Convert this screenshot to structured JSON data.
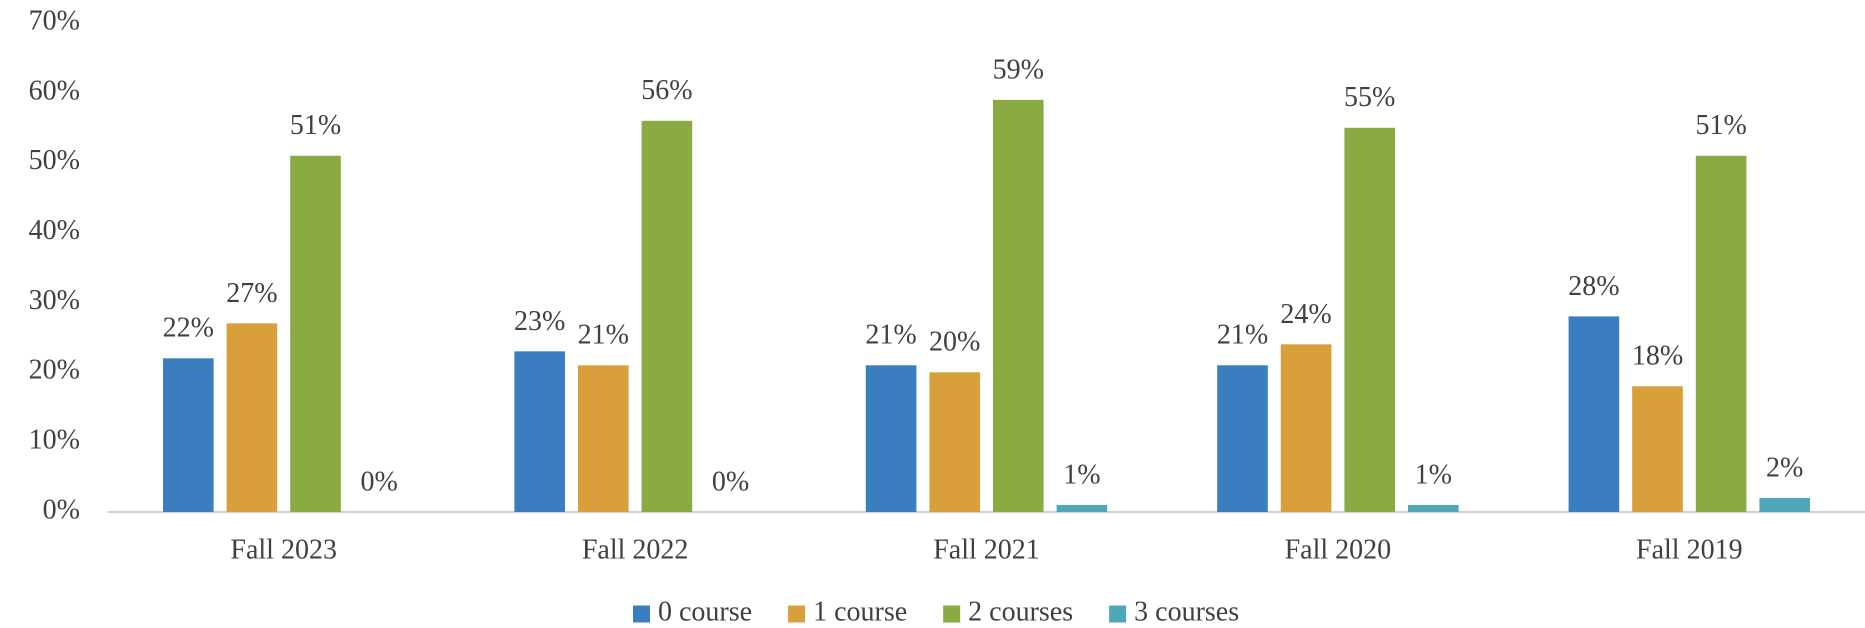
{
  "chart_data": {
    "type": "bar",
    "categories": [
      "Fall 2023",
      "Fall 2022",
      "Fall 2021",
      "Fall 2020",
      "Fall 2019"
    ],
    "series": [
      {
        "name": "0 course",
        "color": "#3a7ebf",
        "values": [
          22,
          23,
          21,
          21,
          28
        ],
        "value_labels": [
          "22%",
          "23%",
          "21%",
          "21%",
          "28%"
        ]
      },
      {
        "name": "1 course",
        "color": "#d89f3a",
        "values": [
          27,
          21,
          20,
          24,
          18
        ],
        "value_labels": [
          "27%",
          "21%",
          "20%",
          "24%",
          "18%"
        ]
      },
      {
        "name": "2 courses",
        "color": "#8aab42",
        "values": [
          51,
          56,
          59,
          55,
          51
        ],
        "value_labels": [
          "51%",
          "56%",
          "59%",
          "55%",
          "51%"
        ]
      },
      {
        "name": "3 courses",
        "color": "#4ea7b8",
        "values": [
          0,
          0,
          1,
          1,
          2
        ],
        "value_labels": [
          "0%",
          "0%",
          "1%",
          "1%",
          "2%"
        ]
      }
    ],
    "ylim": [
      0,
      70
    ],
    "yticks": [
      {
        "value": 0,
        "label": "0%"
      },
      {
        "value": 10,
        "label": "10%"
      },
      {
        "value": 20,
        "label": "20%"
      },
      {
        "value": 30,
        "label": "30%"
      },
      {
        "value": 40,
        "label": "40%"
      },
      {
        "value": 50,
        "label": "50%"
      },
      {
        "value": 60,
        "label": "60%"
      },
      {
        "value": 70,
        "label": "70%"
      }
    ],
    "grid": false,
    "legend": "bottom"
  }
}
